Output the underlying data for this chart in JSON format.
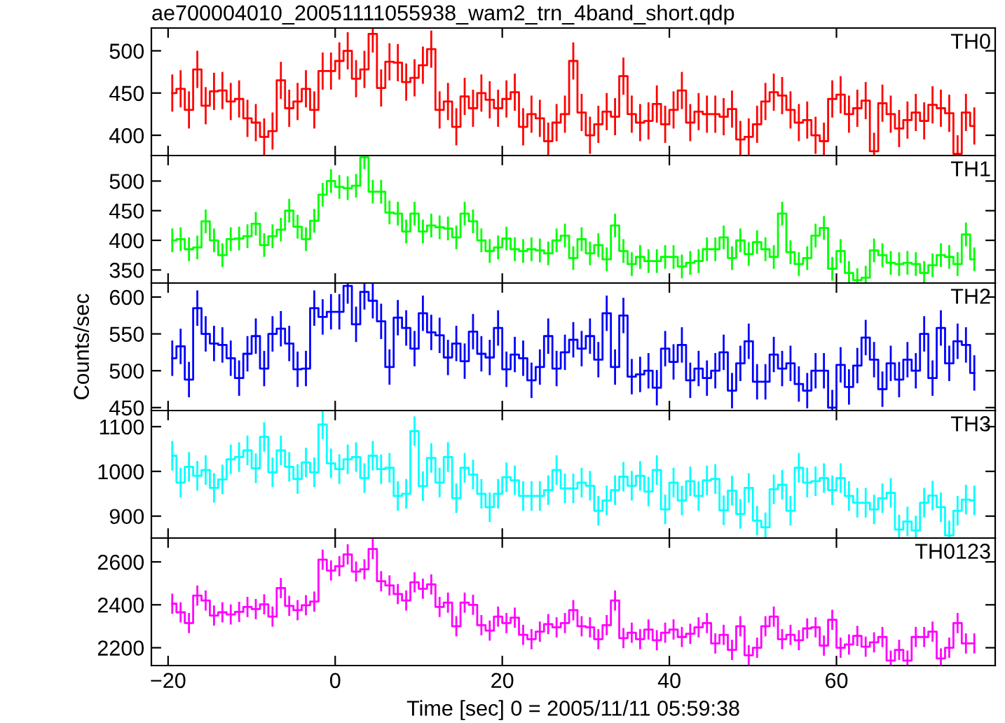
{
  "chart_data": [
    {
      "type": "step",
      "title": "ae700004010_20051111055938_wam2_trn_4band_short.qdp",
      "tick_labels": "y",
      "xlim": [
        -22,
        79
      ],
      "xticks": [
        -20,
        0,
        20,
        40,
        60
      ],
      "ylim": [
        376,
        527
      ],
      "yticks": [
        400,
        450,
        500
      ],
      "x": [
        -19.5,
        -18.5,
        -17.5,
        -16.5,
        -15.5,
        -14.5,
        -13.5,
        -12.5,
        -11.5,
        -10.5,
        -9.5,
        -8.5,
        -7.5,
        -6.5,
        -5.5,
        -4.5,
        -3.5,
        -2.5,
        -1.5,
        -0.5,
        0.5,
        1.5,
        2.5,
        3.5,
        4.5,
        5.5,
        6.5,
        7.5,
        8.5,
        9.5,
        10.5,
        11.5,
        12.5,
        13.5,
        14.5,
        15.5,
        16.5,
        17.5,
        18.5,
        19.5,
        20.5,
        21.5,
        22.5,
        23.5,
        24.5,
        25.5,
        26.5,
        27.5,
        28.5,
        29.5,
        30.5,
        31.5,
        32.5,
        33.5,
        34.5,
        35.5,
        36.5,
        37.5,
        38.5,
        39.5,
        40.5,
        41.5,
        42.5,
        43.5,
        44.5,
        45.5,
        46.5,
        47.5,
        48.5,
        49.5,
        50.5,
        51.5,
        52.5,
        53.5,
        54.5,
        55.5,
        56.5,
        57.5,
        58.5,
        59.5,
        60.5,
        61.5,
        62.5,
        63.5,
        64.5,
        65.5,
        66.5,
        67.5,
        68.5,
        69.5,
        70.5,
        71.5,
        72.5,
        73.5,
        74.5,
        75.5,
        76.5
      ],
      "series": [
        {
          "name": "TH0",
          "color": "#ff0000",
          "values": [
            450,
            455,
            430,
            478,
            435,
            452,
            453,
            440,
            443,
            420,
            415,
            398,
            405,
            465,
            432,
            440,
            455,
            430,
            476,
            476,
            488,
            500,
            467,
            478,
            520,
            456,
            487,
            486,
            463,
            468,
            483,
            502,
            430,
            440,
            410,
            446,
            432,
            450,
            442,
            432,
            443,
            451,
            410,
            425,
            420,
            393,
            415,
            425,
            488,
            427,
            400,
            413,
            428,
            422,
            470,
            425,
            415,
            417,
            437,
            413,
            430,
            453,
            415,
            428,
            425,
            425,
            422,
            431,
            395,
            398,
            413,
            440,
            451,
            447,
            430,
            415,
            418,
            400,
            393,
            443,
            448,
            425,
            432,
            441,
            381,
            438,
            425,
            408,
            418,
            427,
            417,
            436,
            432,
            426,
            378,
            427,
            411
          ],
          "errors": [
            22,
            22,
            22,
            22,
            22,
            22,
            22,
            22,
            22,
            22,
            22,
            22,
            22,
            22,
            22,
            22,
            22,
            22,
            22,
            22,
            22,
            22,
            22,
            22,
            22,
            22,
            22,
            22,
            22,
            22,
            22,
            22,
            22,
            22,
            22,
            22,
            22,
            22,
            22,
            22,
            22,
            22,
            22,
            22,
            22,
            22,
            22,
            22,
            22,
            22,
            22,
            22,
            22,
            22,
            22,
            22,
            22,
            22,
            22,
            22,
            22,
            22,
            22,
            22,
            22,
            22,
            22,
            22,
            22,
            22,
            22,
            22,
            22,
            22,
            22,
            22,
            22,
            22,
            22,
            22,
            22,
            22,
            22,
            22,
            22,
            22,
            22,
            22,
            22,
            22,
            22,
            22,
            22,
            22,
            22,
            22,
            22
          ]
        }
      ]
    },
    {
      "type": "step",
      "tick_labels": "y",
      "xlim": [
        -22,
        79
      ],
      "xticks": [
        -20,
        0,
        20,
        40,
        60
      ],
      "ylim": [
        328,
        543
      ],
      "yticks": [
        350,
        400,
        450,
        500
      ],
      "x": [
        -19.5,
        -18.5,
        -17.5,
        -16.5,
        -15.5,
        -14.5,
        -13.5,
        -12.5,
        -11.5,
        -10.5,
        -9.5,
        -8.5,
        -7.5,
        -6.5,
        -5.5,
        -4.5,
        -3.5,
        -2.5,
        -1.5,
        -0.5,
        0.5,
        1.5,
        2.5,
        3.5,
        4.5,
        5.5,
        6.5,
        7.5,
        8.5,
        9.5,
        10.5,
        11.5,
        12.5,
        13.5,
        14.5,
        15.5,
        16.5,
        17.5,
        18.5,
        19.5,
        20.5,
        21.5,
        22.5,
        23.5,
        24.5,
        25.5,
        26.5,
        27.5,
        28.5,
        29.5,
        30.5,
        31.5,
        32.5,
        33.5,
        34.5,
        35.5,
        36.5,
        37.5,
        38.5,
        39.5,
        40.5,
        41.5,
        42.5,
        43.5,
        44.5,
        45.5,
        46.5,
        47.5,
        48.5,
        49.5,
        50.5,
        51.5,
        52.5,
        53.5,
        54.5,
        55.5,
        56.5,
        57.5,
        58.5,
        59.5,
        60.5,
        61.5,
        62.5,
        63.5,
        64.5,
        65.5,
        66.5,
        67.5,
        68.5,
        69.5,
        70.5,
        71.5,
        72.5,
        73.5,
        74.5,
        75.5,
        76.5
      ],
      "series": [
        {
          "name": "TH1",
          "color": "#00ff00",
          "values": [
            400,
            402,
            385,
            388,
            432,
            400,
            375,
            402,
            403,
            407,
            428,
            392,
            407,
            418,
            450,
            423,
            402,
            433,
            477,
            500,
            490,
            488,
            492,
            540,
            482,
            482,
            447,
            445,
            415,
            445,
            415,
            425,
            422,
            420,
            405,
            445,
            432,
            400,
            382,
            388,
            403,
            385,
            382,
            385,
            383,
            378,
            400,
            408,
            370,
            402,
            378,
            392,
            368,
            425,
            382,
            360,
            372,
            365,
            365,
            372,
            372,
            356,
            362,
            365,
            385,
            385,
            405,
            370,
            400,
            377,
            397,
            385,
            372,
            445,
            380,
            360,
            370,
            408,
            421,
            352,
            382,
            345,
            333,
            337,
            383,
            375,
            362,
            360,
            362,
            360,
            345,
            358,
            375,
            372,
            360,
            410,
            368
          ],
          "errors": [
            20,
            20,
            20,
            20,
            20,
            20,
            20,
            20,
            20,
            20,
            20,
            20,
            20,
            20,
            20,
            20,
            20,
            20,
            20,
            20,
            20,
            20,
            20,
            20,
            20,
            20,
            20,
            20,
            20,
            20,
            20,
            20,
            20,
            20,
            20,
            20,
            20,
            20,
            20,
            20,
            20,
            20,
            20,
            20,
            20,
            20,
            20,
            20,
            20,
            20,
            20,
            20,
            20,
            20,
            20,
            20,
            20,
            20,
            20,
            20,
            20,
            20,
            20,
            20,
            20,
            20,
            20,
            20,
            20,
            20,
            20,
            20,
            20,
            20,
            20,
            20,
            20,
            20,
            20,
            20,
            20,
            20,
            20,
            20,
            20,
            20,
            20,
            20,
            20,
            20,
            20,
            20,
            20,
            20,
            20,
            20,
            20
          ]
        }
      ]
    },
    {
      "type": "step",
      "tick_labels": "y",
      "ylabel": "Counts/sec",
      "xlim": [
        -22,
        79
      ],
      "xticks": [
        -20,
        0,
        20,
        40,
        60
      ],
      "ylim": [
        446,
        619
      ],
      "yticks": [
        450,
        500,
        550,
        600
      ],
      "x": [
        -19.5,
        -18.5,
        -17.5,
        -16.5,
        -15.5,
        -14.5,
        -13.5,
        -12.5,
        -11.5,
        -10.5,
        -9.5,
        -8.5,
        -7.5,
        -6.5,
        -5.5,
        -4.5,
        -3.5,
        -2.5,
        -1.5,
        -0.5,
        0.5,
        1.5,
        2.5,
        3.5,
        4.5,
        5.5,
        6.5,
        7.5,
        8.5,
        9.5,
        10.5,
        11.5,
        12.5,
        13.5,
        14.5,
        15.5,
        16.5,
        17.5,
        18.5,
        19.5,
        20.5,
        21.5,
        22.5,
        23.5,
        24.5,
        25.5,
        26.5,
        27.5,
        28.5,
        29.5,
        30.5,
        31.5,
        32.5,
        33.5,
        34.5,
        35.5,
        36.5,
        37.5,
        38.5,
        39.5,
        40.5,
        41.5,
        42.5,
        43.5,
        44.5,
        45.5,
        46.5,
        47.5,
        48.5,
        49.5,
        50.5,
        51.5,
        52.5,
        53.5,
        54.5,
        55.5,
        56.5,
        57.5,
        58.5,
        59.5,
        60.5,
        61.5,
        62.5,
        63.5,
        64.5,
        65.5,
        66.5,
        67.5,
        68.5,
        69.5,
        70.5,
        71.5,
        72.5,
        73.5,
        74.5,
        75.5,
        76.5
      ],
      "series": [
        {
          "name": "TH2",
          "color": "#0000ff",
          "values": [
            517,
            533,
            488,
            585,
            550,
            537,
            535,
            517,
            490,
            523,
            547,
            503,
            550,
            557,
            537,
            502,
            503,
            585,
            573,
            580,
            580,
            615,
            563,
            607,
            595,
            567,
            505,
            572,
            558,
            530,
            578,
            552,
            548,
            518,
            537,
            513,
            553,
            523,
            518,
            558,
            502,
            522,
            517,
            487,
            505,
            547,
            503,
            525,
            542,
            530,
            547,
            515,
            578,
            505,
            575,
            492,
            495,
            500,
            477,
            530,
            512,
            535,
            487,
            503,
            490,
            500,
            525,
            473,
            510,
            540,
            485,
            485,
            522,
            503,
            510,
            482,
            473,
            500,
            500,
            450,
            508,
            478,
            507,
            545,
            515,
            475,
            510,
            488,
            515,
            500,
            550,
            490,
            558,
            510,
            540,
            535,
            497
          ],
          "errors": [
            24,
            24,
            24,
            24,
            24,
            24,
            24,
            24,
            24,
            24,
            24,
            24,
            24,
            24,
            24,
            24,
            24,
            24,
            24,
            24,
            24,
            24,
            24,
            24,
            24,
            24,
            24,
            24,
            24,
            24,
            24,
            24,
            24,
            24,
            24,
            24,
            24,
            24,
            24,
            24,
            24,
            24,
            24,
            24,
            24,
            24,
            24,
            24,
            24,
            24,
            24,
            24,
            24,
            24,
            24,
            24,
            24,
            24,
            24,
            24,
            24,
            24,
            24,
            24,
            24,
            24,
            24,
            24,
            24,
            24,
            24,
            24,
            24,
            24,
            24,
            24,
            24,
            24,
            24,
            24,
            24,
            24,
            24,
            24,
            24,
            24,
            24,
            24,
            24,
            24,
            24,
            24,
            24,
            24,
            24,
            24,
            24
          ]
        }
      ]
    },
    {
      "type": "step",
      "tick_labels": "y",
      "xlim": [
        -22,
        79
      ],
      "xticks": [
        -20,
        0,
        20,
        40,
        60
      ],
      "ylim": [
        851,
        1136
      ],
      "yticks": [
        900,
        1000,
        1100
      ],
      "x": [
        -19.5,
        -18.5,
        -17.5,
        -16.5,
        -15.5,
        -14.5,
        -13.5,
        -12.5,
        -11.5,
        -10.5,
        -9.5,
        -8.5,
        -7.5,
        -6.5,
        -5.5,
        -4.5,
        -3.5,
        -2.5,
        -1.5,
        -0.5,
        0.5,
        1.5,
        2.5,
        3.5,
        4.5,
        5.5,
        6.5,
        7.5,
        8.5,
        9.5,
        10.5,
        11.5,
        12.5,
        13.5,
        14.5,
        15.5,
        16.5,
        17.5,
        18.5,
        19.5,
        20.5,
        21.5,
        22.5,
        23.5,
        24.5,
        25.5,
        26.5,
        27.5,
        28.5,
        29.5,
        30.5,
        31.5,
        32.5,
        33.5,
        34.5,
        35.5,
        36.5,
        37.5,
        38.5,
        39.5,
        40.5,
        41.5,
        42.5,
        43.5,
        44.5,
        45.5,
        46.5,
        47.5,
        48.5,
        49.5,
        50.5,
        51.5,
        52.5,
        53.5,
        54.5,
        55.5,
        56.5,
        57.5,
        58.5,
        59.5,
        60.5,
        61.5,
        62.5,
        63.5,
        64.5,
        65.5,
        66.5,
        67.5,
        68.5,
        69.5,
        70.5,
        71.5,
        72.5,
        73.5,
        74.5,
        75.5,
        76.5
      ],
      "series": [
        {
          "name": "TH3",
          "color": "#00ffff",
          "values": [
            1035,
            975,
            1010,
            990,
            1003,
            963,
            982,
            1027,
            1032,
            1047,
            1007,
            1077,
            998,
            1047,
            1010,
            983,
            1020,
            998,
            1105,
            1018,
            1005,
            1027,
            1032,
            985,
            1035,
            1005,
            1008,
            945,
            950,
            1090,
            967,
            1030,
            975,
            1032,
            940,
            1008,
            993,
            950,
            920,
            950,
            987,
            980,
            945,
            945,
            945,
            958,
            1003,
            962,
            962,
            975,
            968,
            912,
            935,
            958,
            988,
            968,
            990,
            955,
            1003,
            915,
            975,
            935,
            978,
            945,
            980,
            983,
            913,
            957,
            905,
            963,
            890,
            875,
            960,
            970,
            912,
            1008,
            975,
            978,
            985,
            958,
            985,
            945,
            930,
            930,
            915,
            940,
            952,
            870,
            888,
            868,
            930,
            946,
            920,
            857,
            912,
            937,
            935
          ],
          "errors": [
            33,
            33,
            33,
            33,
            33,
            33,
            33,
            33,
            33,
            33,
            33,
            33,
            33,
            33,
            33,
            33,
            33,
            33,
            33,
            33,
            33,
            33,
            33,
            33,
            33,
            33,
            33,
            33,
            33,
            33,
            33,
            33,
            33,
            33,
            33,
            33,
            33,
            33,
            33,
            33,
            33,
            33,
            33,
            33,
            33,
            33,
            33,
            33,
            33,
            33,
            33,
            33,
            33,
            33,
            33,
            33,
            33,
            33,
            33,
            33,
            33,
            33,
            33,
            33,
            33,
            33,
            33,
            33,
            33,
            33,
            33,
            33,
            33,
            33,
            33,
            33,
            33,
            33,
            33,
            33,
            33,
            33,
            33,
            33,
            33,
            33,
            33,
            33,
            33,
            33,
            33,
            33,
            33,
            33,
            33,
            33,
            33
          ]
        }
      ]
    },
    {
      "type": "step",
      "xlabel": "Time [sec] 0 = 2005/11/11 05:59:38",
      "xlim": [
        -22,
        79
      ],
      "xticks": [
        {
          "value": -20,
          "label": "−20"
        },
        0,
        20,
        40,
        60
      ],
      "ylim": [
        2117,
        2711
      ],
      "yticks": [
        2200,
        2400,
        2600
      ],
      "x": [
        -19.5,
        -18.5,
        -17.5,
        -16.5,
        -15.5,
        -14.5,
        -13.5,
        -12.5,
        -11.5,
        -10.5,
        -9.5,
        -8.5,
        -7.5,
        -6.5,
        -5.5,
        -4.5,
        -3.5,
        -2.5,
        -1.5,
        -0.5,
        0.5,
        1.5,
        2.5,
        3.5,
        4.5,
        5.5,
        6.5,
        7.5,
        8.5,
        9.5,
        10.5,
        11.5,
        12.5,
        13.5,
        14.5,
        15.5,
        16.5,
        17.5,
        18.5,
        19.5,
        20.5,
        21.5,
        22.5,
        23.5,
        24.5,
        25.5,
        26.5,
        27.5,
        28.5,
        29.5,
        30.5,
        31.5,
        32.5,
        33.5,
        34.5,
        35.5,
        36.5,
        37.5,
        38.5,
        39.5,
        40.5,
        41.5,
        42.5,
        43.5,
        44.5,
        45.5,
        46.5,
        47.5,
        48.5,
        49.5,
        50.5,
        51.5,
        52.5,
        53.5,
        54.5,
        55.5,
        56.5,
        57.5,
        58.5,
        59.5,
        60.5,
        61.5,
        62.5,
        63.5,
        64.5,
        65.5,
        66.5,
        67.5,
        68.5,
        69.5,
        70.5,
        71.5,
        72.5,
        73.5,
        74.5,
        75.5,
        76.5
      ],
      "series": [
        {
          "name": "TH0123",
          "color": "#ff00ff",
          "values": [
            2405,
            2365,
            2315,
            2443,
            2420,
            2350,
            2365,
            2355,
            2367,
            2390,
            2380,
            2402,
            2345,
            2478,
            2395,
            2375,
            2398,
            2415,
            2610,
            2560,
            2580,
            2635,
            2555,
            2565,
            2660,
            2510,
            2490,
            2450,
            2420,
            2505,
            2475,
            2495,
            2390,
            2410,
            2300,
            2410,
            2400,
            2305,
            2280,
            2345,
            2315,
            2340,
            2260,
            2240,
            2275,
            2310,
            2295,
            2315,
            2375,
            2300,
            2295,
            2240,
            2305,
            2420,
            2245,
            2270,
            2240,
            2285,
            2235,
            2270,
            2285,
            2250,
            2265,
            2295,
            2315,
            2220,
            2260,
            2190,
            2300,
            2165,
            2200,
            2300,
            2345,
            2240,
            2260,
            2235,
            2290,
            2295,
            2210,
            2330,
            2200,
            2215,
            2255,
            2205,
            2225,
            2250,
            2140,
            2190,
            2140,
            2250,
            2250,
            2275,
            2150,
            2200,
            2315,
            2220,
            2220
          ],
          "errors": [
            47,
            47,
            47,
            47,
            47,
            47,
            47,
            47,
            47,
            47,
            47,
            47,
            47,
            47,
            47,
            47,
            47,
            47,
            47,
            47,
            47,
            47,
            47,
            47,
            47,
            47,
            47,
            47,
            47,
            47,
            47,
            47,
            47,
            47,
            47,
            47,
            47,
            47,
            47,
            47,
            47,
            47,
            47,
            47,
            47,
            47,
            47,
            47,
            47,
            47,
            47,
            47,
            47,
            47,
            47,
            47,
            47,
            47,
            47,
            47,
            47,
            47,
            47,
            47,
            47,
            47,
            47,
            47,
            47,
            47,
            47,
            47,
            47,
            47,
            47,
            47,
            47,
            47,
            47,
            47,
            47,
            47,
            47,
            47,
            47,
            47,
            47,
            47,
            47,
            47,
            47,
            47,
            47,
            47,
            47,
            47,
            47
          ]
        }
      ]
    }
  ]
}
